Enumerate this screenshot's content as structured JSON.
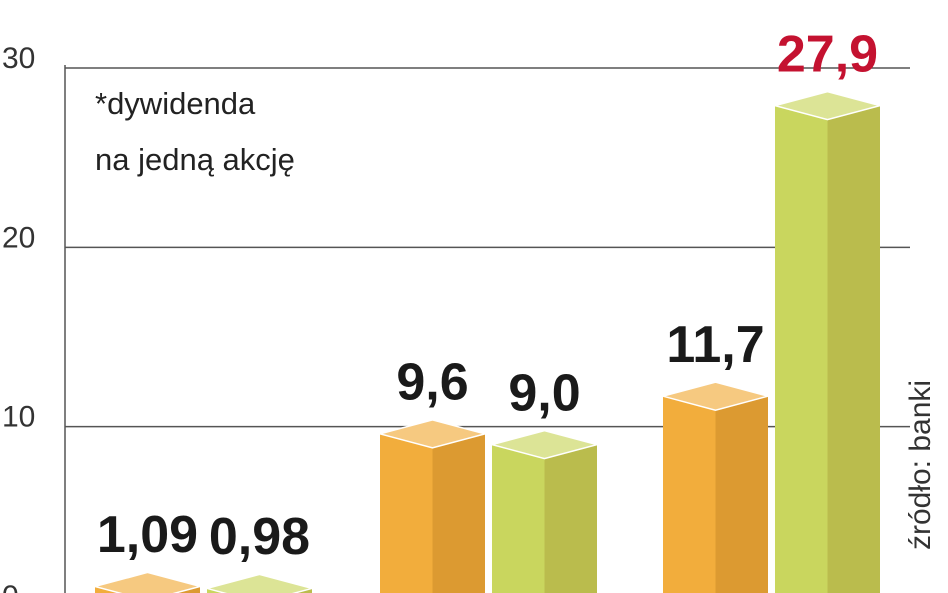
{
  "chart_data": {
    "type": "bar",
    "categories": [
      null,
      null,
      null
    ],
    "series": [
      {
        "color": "#f2ad3c",
        "values": [
          1.09,
          9.6,
          11.7
        ],
        "value_labels": [
          "1,09",
          "9,6",
          "11,7"
        ],
        "label_colors": [
          "#1a1a1a",
          "#1a1a1a",
          "#1a1a1a"
        ]
      },
      {
        "color": "#c9d65e",
        "values": [
          0.98,
          9.0,
          27.9
        ],
        "value_labels": [
          "0,98",
          "9,0",
          "27,9"
        ],
        "label_colors": [
          "#1a1a1a",
          "#1a1a1a",
          "#c41230"
        ]
      }
    ],
    "ylim": [
      0,
      30
    ],
    "yticks": [
      0,
      10,
      20,
      30
    ],
    "grid": true,
    "annotation": [
      "*dywidenda",
      "na jedną akcję"
    ],
    "source": "źródło: banki"
  }
}
